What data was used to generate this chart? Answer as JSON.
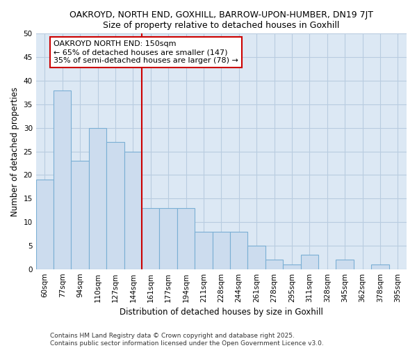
{
  "title1": "OAKROYD, NORTH END, GOXHILL, BARROW-UPON-HUMBER, DN19 7JT",
  "title2": "Size of property relative to detached houses in Goxhill",
  "xlabel": "Distribution of detached houses by size in Goxhill",
  "ylabel": "Number of detached properties",
  "categories": [
    "60sqm",
    "77sqm",
    "94sqm",
    "110sqm",
    "127sqm",
    "144sqm",
    "161sqm",
    "177sqm",
    "194sqm",
    "211sqm",
    "228sqm",
    "244sqm",
    "261sqm",
    "278sqm",
    "295sqm",
    "311sqm",
    "328sqm",
    "345sqm",
    "362sqm",
    "378sqm",
    "395sqm"
  ],
  "values": [
    19,
    38,
    23,
    30,
    27,
    25,
    13,
    13,
    13,
    8,
    8,
    8,
    5,
    2,
    1,
    3,
    0,
    2,
    0,
    1,
    0
  ],
  "bar_color": "#ccdcee",
  "bar_edge_color": "#7aafd4",
  "vline_x": 5.5,
  "vline_color": "#cc0000",
  "annotation_text": "OAKROYD NORTH END: 150sqm\n← 65% of detached houses are smaller (147)\n35% of semi-detached houses are larger (78) →",
  "annotation_box_color": "white",
  "annotation_box_edge": "#cc0000",
  "ylim": [
    0,
    50
  ],
  "yticks": [
    0,
    5,
    10,
    15,
    20,
    25,
    30,
    35,
    40,
    45,
    50
  ],
  "footer": "Contains HM Land Registry data © Crown copyright and database right 2025.\nContains public sector information licensed under the Open Government Licence v3.0.",
  "fig_bg_color": "#ffffff",
  "plot_bg_color": "#dce8f4",
  "grid_color": "#b8cce0",
  "title_fontsize": 9,
  "subtitle_fontsize": 9,
  "tick_fontsize": 7.5,
  "label_fontsize": 8.5,
  "footer_fontsize": 6.5,
  "annot_fontsize": 8
}
